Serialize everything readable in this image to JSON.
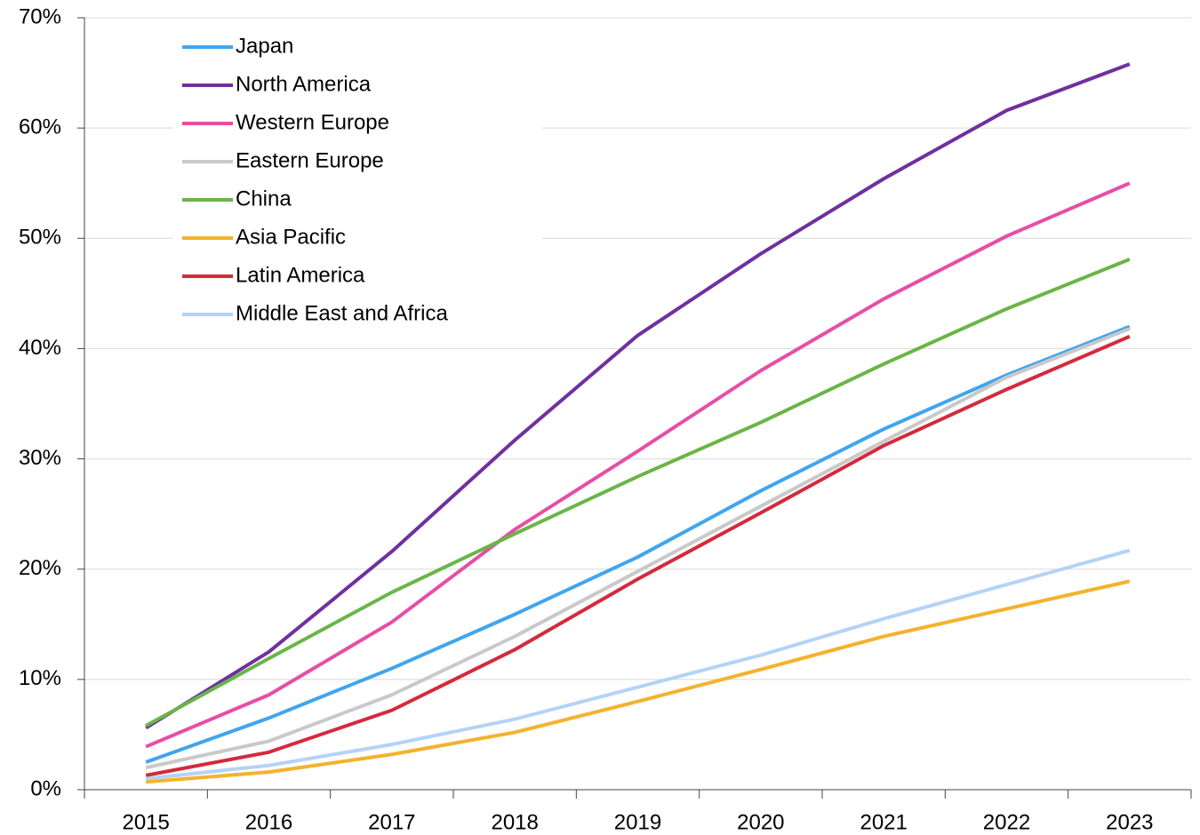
{
  "chart_data": {
    "type": "line",
    "categories": [
      "2015",
      "2016",
      "2017",
      "2018",
      "2019",
      "2020",
      "2021",
      "2022",
      "2023"
    ],
    "series": [
      {
        "name": "Japan",
        "color": "#41a5ee",
        "values": [
          2.5,
          6.5,
          11.0,
          15.9,
          21.1,
          27.1,
          32.7,
          37.6,
          42.0
        ]
      },
      {
        "name": "North America",
        "color": "#7030a0",
        "values": [
          5.6,
          12.5,
          21.6,
          31.7,
          41.2,
          48.6,
          55.4,
          61.6,
          65.8
        ]
      },
      {
        "name": "Western Europe",
        "color": "#e64ea6",
        "values": [
          3.9,
          8.6,
          15.2,
          23.6,
          30.7,
          38.0,
          44.5,
          50.2,
          55.0
        ]
      },
      {
        "name": "Eastern Europe",
        "color": "#c9c9c9",
        "values": [
          2.0,
          4.4,
          8.6,
          13.9,
          19.8,
          25.7,
          31.6,
          37.4,
          41.8
        ]
      },
      {
        "name": "China",
        "color": "#6ab547",
        "values": [
          5.8,
          11.9,
          17.9,
          23.2,
          28.4,
          33.3,
          38.6,
          43.6,
          48.1
        ]
      },
      {
        "name": "Asia Pacific",
        "color": "#f4b22c",
        "values": [
          0.7,
          1.6,
          3.2,
          5.2,
          8.0,
          10.9,
          13.9,
          16.4,
          18.9
        ]
      },
      {
        "name": "Latin America",
        "color": "#d42a3c",
        "values": [
          1.3,
          3.4,
          7.2,
          12.7,
          19.1,
          25.1,
          31.2,
          36.3,
          41.1
        ]
      },
      {
        "name": "Middle East and Africa",
        "color": "#b4d3f5",
        "values": [
          1.0,
          2.2,
          4.1,
          6.4,
          9.3,
          12.2,
          15.5,
          18.6,
          21.7
        ]
      }
    ],
    "ylim": [
      0,
      70
    ],
    "yticks": [
      {
        "value": 0,
        "label": "0%"
      },
      {
        "value": 10,
        "label": "10%"
      },
      {
        "value": 20,
        "label": "20%"
      },
      {
        "value": 30,
        "label": "30%"
      },
      {
        "value": 40,
        "label": "40%"
      },
      {
        "value": 50,
        "label": "50%"
      },
      {
        "value": 60,
        "label": "60%"
      },
      {
        "value": 70,
        "label": "70%"
      }
    ],
    "grid": true,
    "legend": "upper left"
  }
}
